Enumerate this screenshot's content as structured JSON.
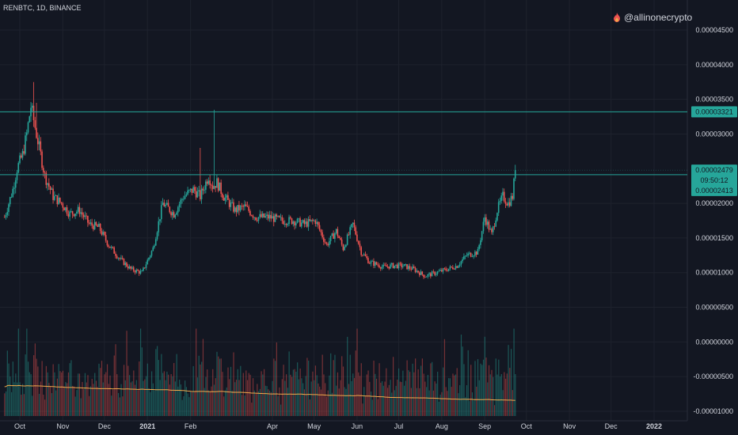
{
  "header": {
    "symbol": "RENBTC, 1D, BINANCE",
    "watermark": "@allinonecrypto",
    "watermark_icon": "flame-icon"
  },
  "chart_data": {
    "type": "candlestick",
    "price_axis": {
      "ticks": [
        "0.00004500",
        "0.00004000",
        "0.00003500",
        "0.00003000",
        "0.00002000",
        "0.00001500",
        "0.00001000",
        "0.00000500",
        "0.00000000",
        "-0.00000500",
        "-0.00001000"
      ],
      "tick_values": [
        4.5e-05,
        4e-05,
        3.5e-05,
        3e-05,
        2e-05,
        1.5e-05,
        1e-05,
        5e-06,
        0,
        -5e-06,
        -1e-05
      ],
      "range": [
        -1e-05,
        4.75e-05
      ]
    },
    "time_axis": {
      "labels": [
        "Oct",
        "Nov",
        "Dec",
        "2021",
        "Feb",
        "Apr",
        "May",
        "Jun",
        "Jul",
        "Aug",
        "Sep",
        "Oct",
        "Nov",
        "Dec",
        "2022"
      ],
      "label_dates": [
        "2020-10-01",
        "2020-11-01",
        "2020-12-01",
        "2021-01-01",
        "2021-02-01",
        "2021-04-01",
        "2021-05-01",
        "2021-06-01",
        "2021-07-01",
        "2021-08-01",
        "2021-09-01",
        "2021-10-01",
        "2021-11-01",
        "2021-12-01",
        "2022-01-01"
      ]
    },
    "horizontal_lines": [
      {
        "value": 3.321e-05,
        "label": "0.00003321",
        "color": "#26a69a"
      },
      {
        "value": 2.413e-05,
        "label": "0.00002413",
        "color": "#26a69a"
      }
    ],
    "last_price": {
      "value": 2.479e-05,
      "label": "0.00002479",
      "countdown": "09:50:12",
      "color": "#26a69a"
    },
    "series_anchors": {
      "start_date": "2020-09-20",
      "end_date": "2021-09-23",
      "dates": [
        "2020-09-20",
        "2020-09-26",
        "2020-09-29",
        "2020-10-03",
        "2020-10-06",
        "2020-10-09",
        "2020-10-14",
        "2020-10-19",
        "2020-10-25",
        "2020-10-31",
        "2020-11-06",
        "2020-11-13",
        "2020-11-20",
        "2020-11-27",
        "2020-12-04",
        "2020-12-12",
        "2020-12-20",
        "2020-12-28",
        "2021-01-05",
        "2021-01-12",
        "2021-01-20",
        "2021-01-27",
        "2021-02-03",
        "2021-02-08",
        "2021-02-14",
        "2021-02-17",
        "2021-02-20",
        "2021-02-25",
        "2021-03-05",
        "2021-03-12",
        "2021-03-20",
        "2021-03-30",
        "2021-04-08",
        "2021-04-16",
        "2021-04-24",
        "2021-05-02",
        "2021-05-10",
        "2021-05-17",
        "2021-05-22",
        "2021-05-29",
        "2021-06-04",
        "2021-06-10",
        "2021-06-15",
        "2021-06-20",
        "2021-06-26",
        "2021-07-04",
        "2021-07-12",
        "2021-07-20",
        "2021-07-28",
        "2021-08-05",
        "2021-08-12",
        "2021-08-19",
        "2021-08-27",
        "2021-09-01",
        "2021-09-06",
        "2021-09-10",
        "2021-09-14",
        "2021-09-18",
        "2021-09-21",
        "2021-09-23"
      ],
      "close": [
        1.8e-05,
        2.2e-05,
        2.5e-05,
        2.7e-05,
        3e-05,
        3.4e-05,
        2.9e-05,
        2.4e-05,
        2.1e-05,
        2e-05,
        1.85e-05,
        1.9e-05,
        1.7e-05,
        1.65e-05,
        1.4e-05,
        1.2e-05,
        1.05e-05,
        1e-05,
        1.35e-05,
        2e-05,
        1.85e-05,
        2.1e-05,
        2.2e-05,
        2.1e-05,
        2.4e-05,
        2.25e-05,
        2.3e-05,
        2.1e-05,
        1.9e-05,
        1.95e-05,
        1.8e-05,
        1.8e-05,
        1.75e-05,
        1.75e-05,
        1.7e-05,
        1.75e-05,
        1.4e-05,
        1.6e-05,
        1.35e-05,
        1.7e-05,
        1.3e-05,
        1.15e-05,
        1.12e-05,
        1.08e-05,
        1.1e-05,
        1.1e-05,
        1.05e-05,
        9.5e-06,
        1e-05,
        1.05e-05,
        1.1e-05,
        1.25e-05,
        1.3e-05,
        1.8e-05,
        1.55e-05,
        1.9e-05,
        2.1e-05,
        2e-05,
        2.1e-05,
        2.479e-05
      ]
    },
    "volume": {
      "shown": true,
      "moving_average_color": "#f0a94b"
    }
  },
  "colors": {
    "up": "#26a69a",
    "down": "#ef5350",
    "background": "#131722",
    "grid": "#1e222d",
    "text": "#d1d4dc"
  }
}
